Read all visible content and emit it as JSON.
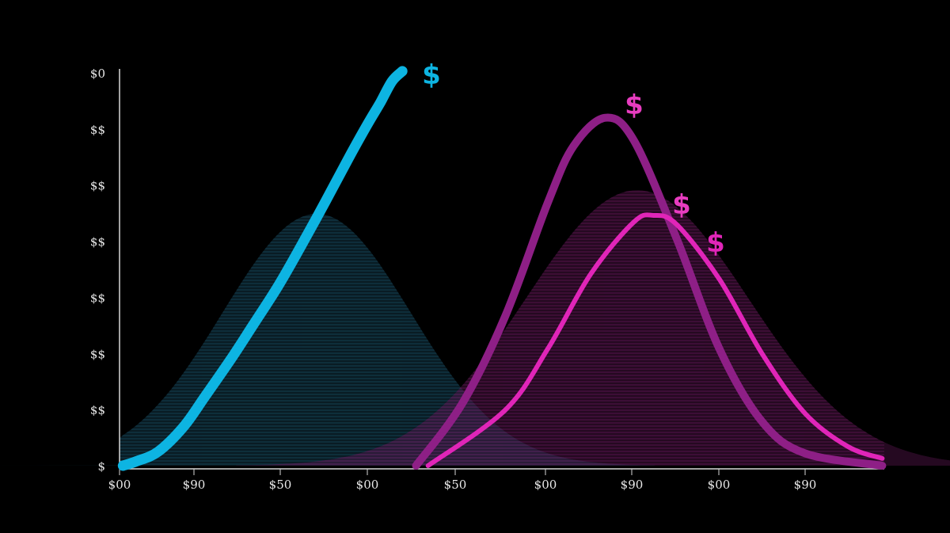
{
  "chart_data": {
    "type": "line",
    "title": "",
    "xlabel": "",
    "ylabel": "",
    "x_ticks": [
      "$00",
      "$90",
      "$50",
      "$00",
      "$50",
      "$00",
      "$90",
      "$00",
      "$90"
    ],
    "y_ticks": [
      "$",
      "$$",
      "$$",
      "$$",
      "$$",
      "$$",
      "$$",
      "$0"
    ],
    "xlim": [
      0,
      8.9
    ],
    "ylim": [
      0,
      7
    ],
    "grid": false,
    "legend": "none",
    "series": [
      {
        "color": "#0db4e2",
        "label": "$",
        "points": [
          [
            0.04,
            0
          ],
          [
            0.2,
            0.08
          ],
          [
            0.45,
            0.25
          ],
          [
            0.75,
            0.7
          ],
          [
            1.0,
            1.24
          ],
          [
            1.3,
            1.9
          ],
          [
            1.56,
            2.51
          ],
          [
            1.85,
            3.2
          ],
          [
            2.12,
            3.92
          ],
          [
            2.4,
            4.7
          ],
          [
            2.67,
            5.47
          ],
          [
            2.9,
            6.1
          ],
          [
            3.04,
            6.46
          ],
          [
            3.18,
            6.85
          ],
          [
            3.3,
            7.03
          ]
        ]
      },
      {
        "color": "#8e1f86",
        "label": "$",
        "points": [
          [
            3.46,
            0
          ],
          [
            4.0,
            1.11
          ],
          [
            4.5,
            2.66
          ],
          [
            5.0,
            4.7
          ],
          [
            5.3,
            5.7
          ],
          [
            5.67,
            6.2
          ],
          [
            6.0,
            5.8
          ],
          [
            6.5,
            4.05
          ],
          [
            7.0,
            2.08
          ],
          [
            7.5,
            0.78
          ],
          [
            8.0,
            0.22
          ],
          [
            8.9,
            0
          ]
        ]
      },
      {
        "color": "#e025b8",
        "label": "$",
        "points": [
          [
            3.6,
            0
          ],
          [
            4.5,
            0.99
          ],
          [
            5.0,
            2.09
          ],
          [
            5.5,
            3.42
          ],
          [
            6.0,
            4.34
          ],
          [
            6.23,
            4.46
          ],
          [
            6.5,
            4.3
          ],
          [
            7.0,
            3.32
          ],
          [
            7.5,
            1.99
          ],
          [
            8.0,
            0.93
          ],
          [
            8.5,
            0.34
          ],
          [
            8.9,
            0.13
          ]
        ]
      }
    ],
    "shaded_areas": [
      {
        "color": "#1b4f66",
        "peak_x": 2.3,
        "peak_y": 4.49,
        "sigma": 1.1
      },
      {
        "color": "#6a1a5e",
        "peak_x": 6.04,
        "peak_y": 4.91,
        "sigma": 1.3
      }
    ],
    "extra_labels": [
      {
        "text": "$",
        "color": "#e025b8",
        "x": 6.95,
        "y": 4.7
      }
    ]
  }
}
